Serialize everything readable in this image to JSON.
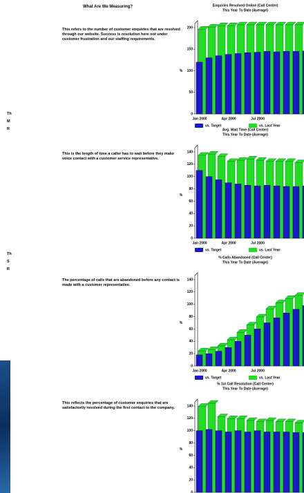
{
  "document": {
    "heading": "What Are We Measuring?",
    "rows": [
      "This refers to the number of customer enquiries that are resolved through our website. Success is resolution here not under customer frustration and our staffing requirements.",
      "This is the length of time a caller has to wait before they make voice contact with a customer service representative.",
      "The percentage of calls that are abandoned before any contact is made with a customer representative.",
      "This reflects the percentage of customer enquiries that are satisfactorily resolved during the first contact to the company."
    ],
    "left_fragments": [
      "Th",
      "M",
      "R",
      "Th",
      "S",
      "R"
    ]
  },
  "chart_data": [
    {
      "type": "bar",
      "title": "Enquiries Resolved Online (Call Center)",
      "subtitle": "This Year To Date (Average)",
      "ylabel": "%",
      "categories": [
        "Jan 2000",
        null,
        null,
        "Apr 2000",
        null,
        null,
        "Jul 2000",
        null,
        null,
        null,
        null,
        null
      ],
      "series": [
        {
          "name": "vs. Last Year",
          "color": "#22dd22",
          "values": [
            190,
            195,
            198,
            198,
            200,
            200,
            200,
            200,
            200,
            200,
            200,
            200
          ]
        },
        {
          "name": "vs. Target",
          "color": "#1a1acc",
          "values": [
            120,
            130,
            135,
            138,
            140,
            142,
            143,
            145,
            144,
            145,
            145,
            146
          ]
        }
      ],
      "ylim": [
        0,
        200
      ],
      "yticks": [
        0,
        50,
        100,
        150,
        200
      ]
    },
    {
      "type": "bar",
      "title": "Avg. Wait Time (Call Center)",
      "subtitle": "This Year To Date (Average)",
      "ylabel": "%",
      "categories": [
        "Jan 2000",
        null,
        null,
        "Apr 2000",
        null,
        null,
        "Jul 2000",
        null,
        null,
        null,
        null,
        null
      ],
      "series": [
        {
          "name": "vs. Last Year",
          "color": "#22dd22",
          "values": [
            130,
            132,
            128,
            120,
            122,
            124,
            122,
            120,
            120,
            120,
            118,
            118
          ]
        },
        {
          "name": "vs. Target",
          "color": "#1a1acc",
          "values": [
            110,
            100,
            95,
            90,
            88,
            86,
            85,
            86,
            85,
            84,
            84,
            85
          ]
        }
      ],
      "ylim": [
        0,
        140
      ],
      "yticks": [
        0,
        20,
        40,
        60,
        80,
        100,
        120,
        140
      ]
    },
    {
      "type": "bar",
      "title": "% Calls Abandoned (Call Center)",
      "subtitle": "This Year To Date (Average)",
      "ylabel": "%",
      "categories": [
        "Jan 2000",
        null,
        null,
        "Apr 2000",
        null,
        null,
        "Jul 2000",
        null,
        null,
        null,
        null,
        null
      ],
      "series": [
        {
          "name": "vs. Last Year",
          "color": "#22dd22",
          "values": [
            20,
            22,
            28,
            38,
            50,
            62,
            75,
            88,
            98,
            105,
            110,
            115
          ]
        },
        {
          "name": "vs. Target",
          "color": "#1a1acc",
          "values": [
            18,
            20,
            24,
            30,
            40,
            50,
            60,
            70,
            78,
            86,
            92,
            98
          ]
        }
      ],
      "ylim": [
        0,
        140
      ],
      "yticks": [
        0,
        20,
        40,
        60,
        80,
        100,
        120,
        140
      ]
    },
    {
      "type": "bar",
      "title": "% 1st Call Resolution (Call Center)",
      "subtitle": "This Year To Date (Average)",
      "ylabel": "%",
      "categories": [
        "Jan 2000",
        null,
        null,
        "Apr 2000",
        null,
        null,
        "Jul 2000",
        null,
        null,
        null,
        null,
        null
      ],
      "series": [
        {
          "name": "vs. Last Year",
          "color": "#22dd22",
          "values": [
            135,
            140,
            118,
            115,
            115,
            112,
            110,
            112,
            110,
            110,
            108,
            108
          ]
        },
        {
          "name": "vs. Target",
          "color": "#1a1acc",
          "values": [
            100,
            102,
            100,
            98,
            100,
            98,
            100,
            98,
            98,
            98,
            97,
            97
          ]
        }
      ],
      "ylim": [
        0,
        140
      ],
      "yticks": [
        0,
        20,
        40,
        60,
        80,
        100,
        120,
        140
      ]
    }
  ]
}
